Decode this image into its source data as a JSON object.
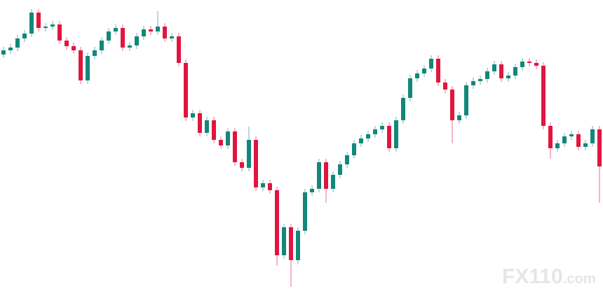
{
  "chart_data": {
    "type": "candlestick",
    "up_color": "#13877c",
    "down_color": "#e0163f",
    "ylim": [
      0,
      419
    ],
    "open": [
      341,
      347,
      351,
      364,
      371,
      401,
      379,
      381,
      384,
      361,
      353,
      347,
      304,
      339,
      347,
      361,
      374,
      379,
      351,
      354,
      367,
      377,
      374,
      381,
      364,
      367,
      329,
      251,
      257,
      229,
      247,
      219,
      211,
      231,
      187,
      179,
      219,
      151,
      157,
      147,
      54,
      94,
      47,
      89,
      144,
      149,
      187,
      149,
      169,
      184,
      197,
      214,
      221,
      227,
      234,
      239,
      207,
      247,
      279,
      307,
      314,
      321,
      335,
      301,
      291,
      247,
      254,
      297,
      303,
      306,
      317,
      327,
      307,
      311,
      323,
      331,
      329,
      325,
      239,
      207,
      214,
      224,
      227,
      209,
      214,
      234
    ],
    "high": [
      352,
      356,
      369,
      376,
      406,
      406,
      386,
      389,
      389,
      366,
      358,
      352,
      344,
      352,
      366,
      379,
      384,
      384,
      359,
      372,
      382,
      382,
      403,
      386,
      372,
      372,
      334,
      262,
      262,
      252,
      252,
      224,
      236,
      236,
      192,
      238,
      224,
      162,
      162,
      152,
      99,
      99,
      94,
      149,
      154,
      192,
      192,
      174,
      189,
      202,
      219,
      226,
      232,
      239,
      244,
      244,
      252,
      284,
      312,
      319,
      326,
      340,
      340,
      306,
      296,
      259,
      302,
      308,
      311,
      322,
      332,
      332,
      316,
      328,
      336,
      336,
      334,
      330,
      244,
      219,
      229,
      232,
      232,
      219,
      239,
      239
    ],
    "low": [
      336,
      342,
      346,
      359,
      366,
      374,
      374,
      376,
      356,
      348,
      342,
      299,
      299,
      334,
      342,
      356,
      369,
      346,
      346,
      349,
      362,
      369,
      369,
      359,
      359,
      324,
      246,
      246,
      224,
      224,
      214,
      206,
      206,
      182,
      174,
      174,
      146,
      146,
      142,
      39,
      49,
      9,
      42,
      84,
      139,
      144,
      129,
      144,
      164,
      179,
      192,
      209,
      216,
      222,
      229,
      202,
      202,
      242,
      274,
      302,
      309,
      316,
      296,
      286,
      214,
      242,
      249,
      292,
      298,
      301,
      312,
      302,
      302,
      306,
      318,
      324,
      320,
      234,
      192,
      202,
      209,
      219,
      204,
      204,
      209,
      129
    ],
    "close": [
      347,
      351,
      364,
      371,
      401,
      379,
      381,
      384,
      361,
      353,
      347,
      304,
      339,
      347,
      361,
      374,
      379,
      351,
      354,
      367,
      377,
      374,
      381,
      364,
      367,
      329,
      251,
      257,
      229,
      247,
      219,
      211,
      231,
      187,
      179,
      219,
      151,
      157,
      147,
      54,
      94,
      47,
      89,
      144,
      149,
      187,
      149,
      169,
      184,
      197,
      214,
      221,
      227,
      234,
      239,
      207,
      247,
      279,
      307,
      314,
      321,
      335,
      301,
      291,
      247,
      254,
      297,
      303,
      306,
      317,
      327,
      307,
      311,
      323,
      331,
      329,
      325,
      239,
      207,
      214,
      224,
      227,
      209,
      214,
      234,
      181
    ]
  },
  "watermark": {
    "brand": "FX110",
    "suffix": ".com"
  }
}
